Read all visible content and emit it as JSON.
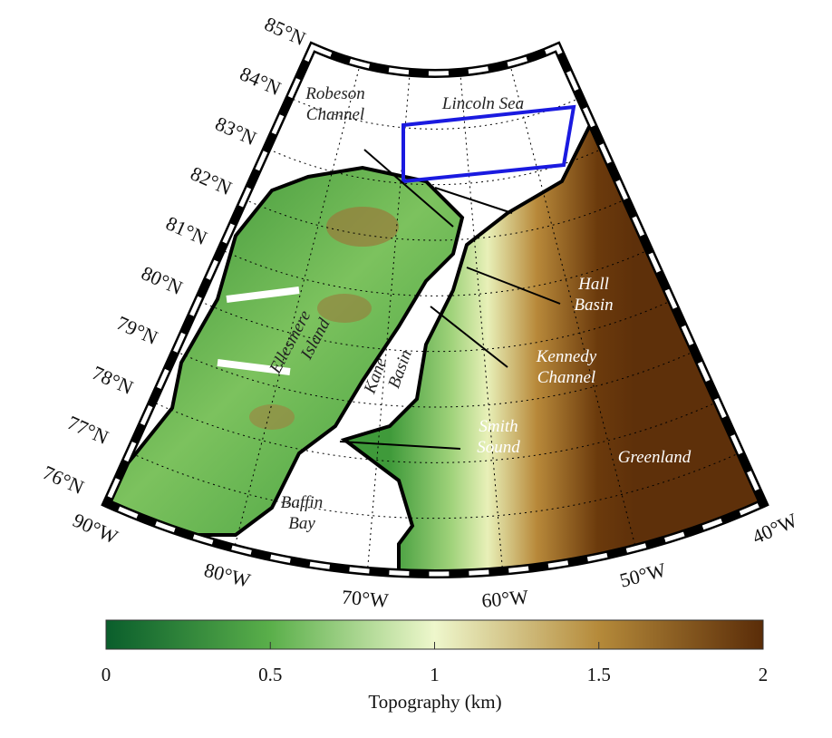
{
  "map": {
    "latitude_labels": [
      "85°N",
      "84°N",
      "83°N",
      "82°N",
      "81°N",
      "80°N",
      "79°N",
      "78°N",
      "77°N",
      "76°N"
    ],
    "longitude_labels": [
      "90°W",
      "80°W",
      "70°W",
      "60°W",
      "50°W",
      "40°W"
    ],
    "places": [
      {
        "lines": [
          "Lincoln Sea"
        ]
      },
      {
        "lines": [
          "Robeson",
          "Channel"
        ]
      },
      {
        "lines": [
          "Hall",
          "Basin"
        ]
      },
      {
        "lines": [
          "Kennedy",
          "Channel"
        ]
      },
      {
        "lines": [
          "Smith",
          "Sound"
        ]
      },
      {
        "lines": [
          "Greenland"
        ]
      },
      {
        "lines": [
          "Ellesmere",
          "Island"
        ]
      },
      {
        "lines": [
          "Kane",
          "Basin"
        ]
      },
      {
        "lines": [
          "Baffin",
          "Bay"
        ]
      }
    ]
  },
  "colorbar": {
    "lim": [
      0,
      2
    ],
    "ticks": [
      0,
      0.5,
      1,
      1.5,
      2
    ],
    "label": "Topography (km)"
  }
}
